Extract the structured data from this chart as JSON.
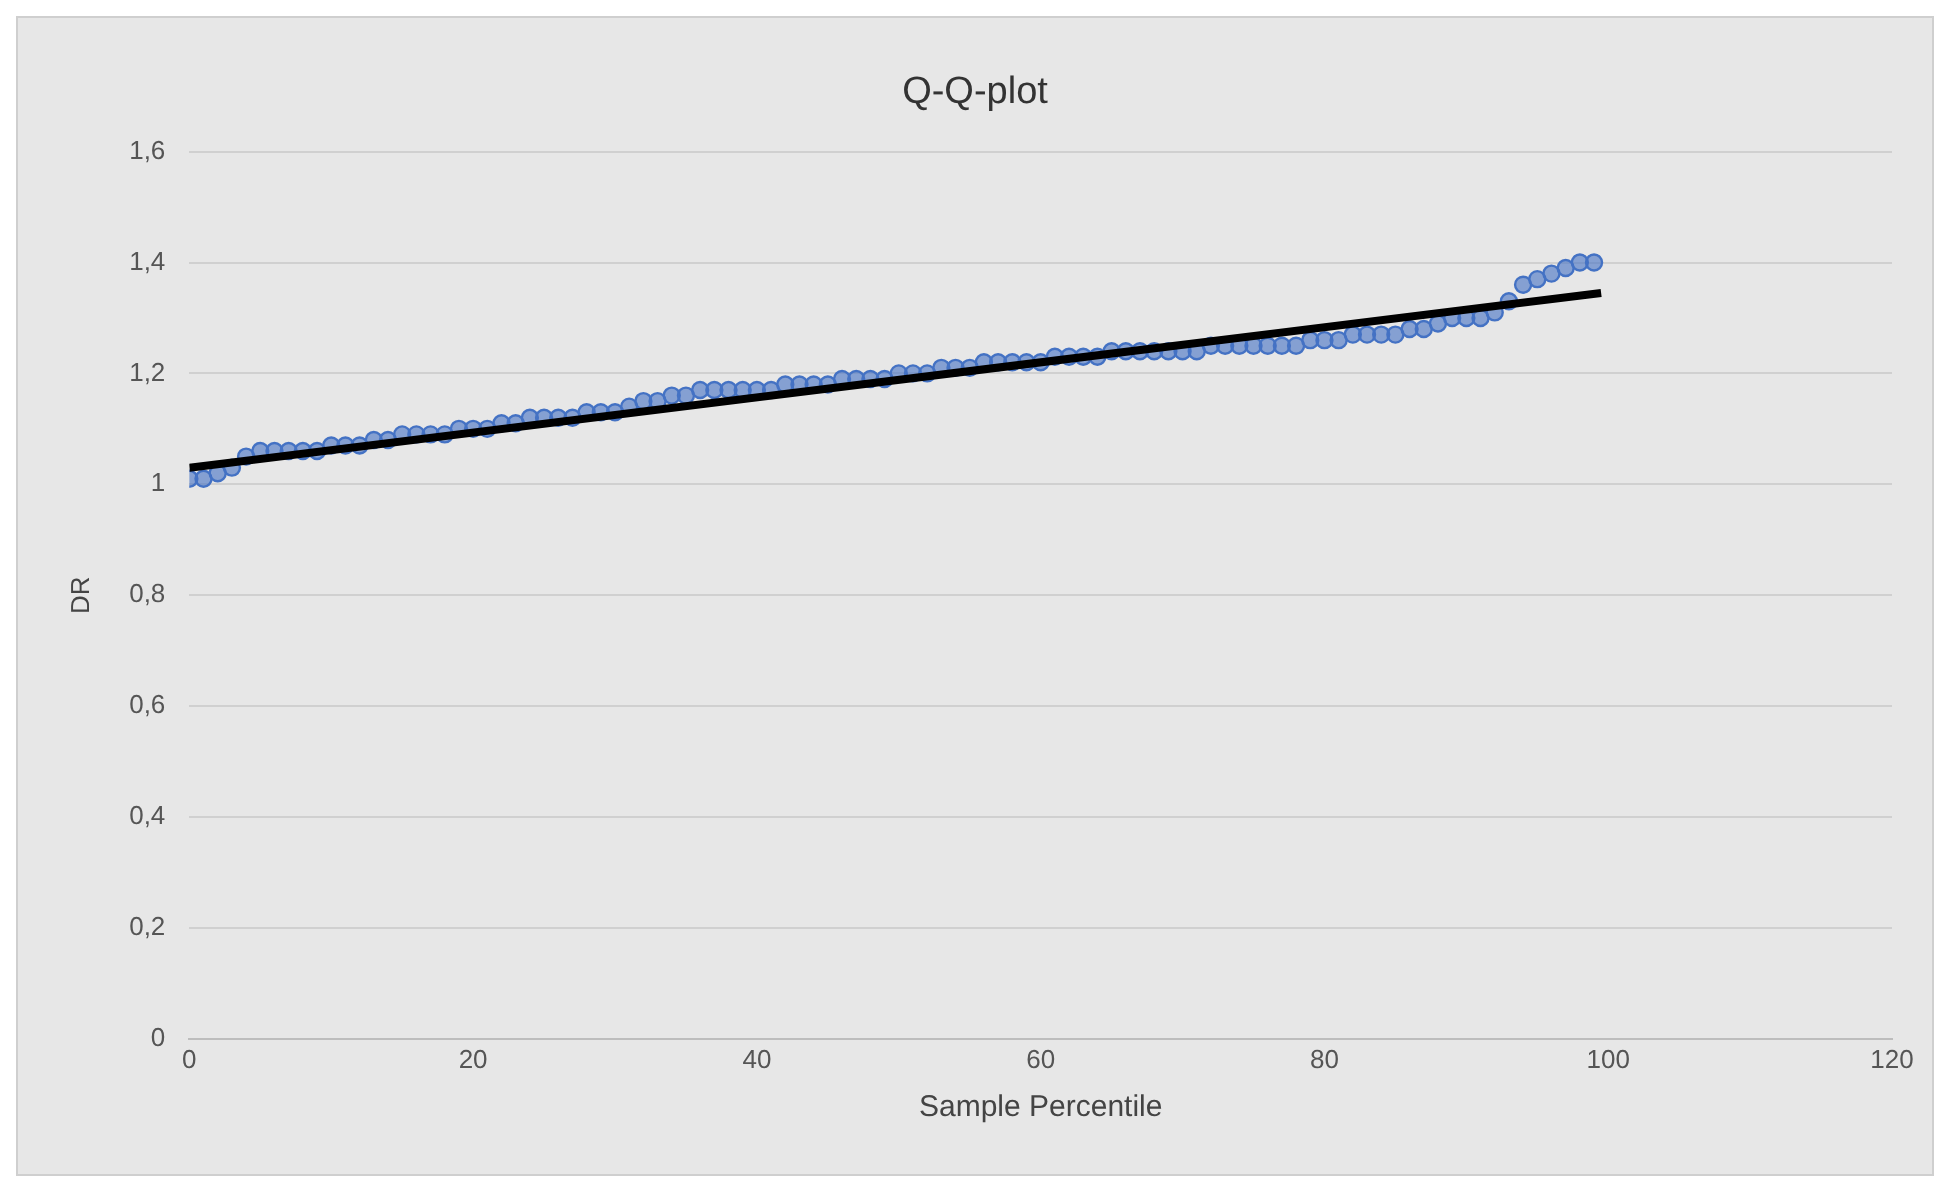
{
  "chart_data": {
    "type": "scatter",
    "title": "Q-Q-plot",
    "xlabel": "Sample Percentile",
    "ylabel": "DR",
    "xlim": [
      0,
      120
    ],
    "xticks": [
      0,
      20,
      40,
      60,
      80,
      100,
      120
    ],
    "ylim": [
      0,
      1.6
    ],
    "yticks": [
      0,
      {
        "value": 0.2,
        "label": "0,2"
      },
      {
        "value": 0.4,
        "label": "0,4"
      },
      {
        "value": 0.6,
        "label": "0,6"
      },
      {
        "value": 0.8,
        "label": "0,8"
      },
      1,
      {
        "value": 1.2,
        "label": "1,2"
      },
      {
        "value": 1.4,
        "label": "1,4"
      },
      {
        "value": 1.6,
        "label": "1,6"
      }
    ],
    "grid": "y",
    "legend": false,
    "marker": "circle",
    "series": [
      {
        "color": "#4472c4",
        "x": [
          0,
          1,
          2,
          3,
          4,
          5,
          6,
          7,
          8,
          9,
          10,
          11,
          12,
          13,
          14,
          15,
          16,
          17,
          18,
          19,
          20,
          21,
          22,
          23,
          24,
          25,
          26,
          27,
          28,
          29,
          30,
          31,
          32,
          33,
          34,
          35,
          36,
          37,
          38,
          39,
          40,
          41,
          42,
          43,
          44,
          45,
          46,
          47,
          48,
          49,
          50,
          51,
          52,
          53,
          54,
          55,
          56,
          57,
          58,
          59,
          60,
          61,
          62,
          63,
          64,
          65,
          66,
          67,
          68,
          69,
          70,
          71,
          72,
          73,
          74,
          75,
          76,
          77,
          78,
          79,
          80,
          81,
          82,
          83,
          84,
          85,
          86,
          87,
          88,
          89,
          90,
          91,
          92,
          93,
          94,
          95,
          96,
          97,
          98,
          99
        ],
        "values": [
          1.01,
          1.01,
          1.02,
          1.03,
          1.05,
          1.06,
          1.06,
          1.06,
          1.06,
          1.06,
          1.07,
          1.07,
          1.07,
          1.08,
          1.08,
          1.09,
          1.09,
          1.09,
          1.09,
          1.1,
          1.1,
          1.1,
          1.11,
          1.11,
          1.12,
          1.12,
          1.12,
          1.12,
          1.13,
          1.13,
          1.13,
          1.14,
          1.15,
          1.15,
          1.16,
          1.16,
          1.17,
          1.17,
          1.17,
          1.17,
          1.17,
          1.17,
          1.18,
          1.18,
          1.18,
          1.18,
          1.19,
          1.19,
          1.19,
          1.19,
          1.2,
          1.2,
          1.2,
          1.21,
          1.21,
          1.21,
          1.22,
          1.22,
          1.22,
          1.22,
          1.22,
          1.23,
          1.23,
          1.23,
          1.23,
          1.24,
          1.24,
          1.24,
          1.24,
          1.24,
          1.24,
          1.24,
          1.25,
          1.25,
          1.25,
          1.25,
          1.25,
          1.25,
          1.25,
          1.26,
          1.26,
          1.26,
          1.27,
          1.27,
          1.27,
          1.27,
          1.28,
          1.28,
          1.29,
          1.3,
          1.3,
          1.3,
          1.31,
          1.33,
          1.36,
          1.37,
          1.38,
          1.39,
          1.4,
          1.4
        ]
      },
      {
        "type": "line",
        "color": "#000000",
        "marker": "none",
        "line_style": "solid",
        "x": [
          0,
          99.5
        ],
        "values": [
          1.03,
          1.345
        ]
      }
    ]
  }
}
